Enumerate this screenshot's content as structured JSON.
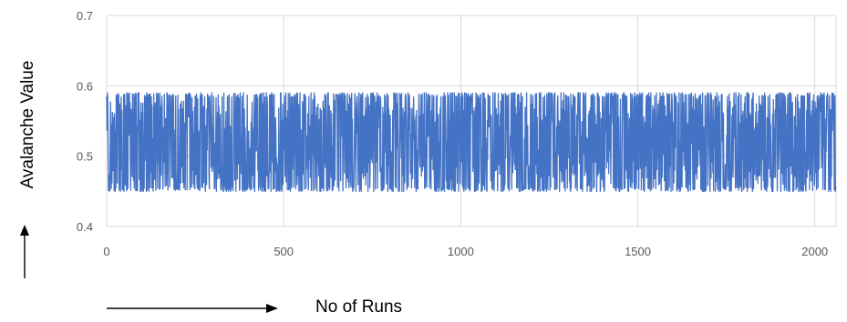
{
  "chart_data": {
    "type": "line",
    "title": "",
    "xlabel": "No of Runs",
    "ylabel": "Avalanche Value",
    "xlim": [
      0,
      2060
    ],
    "ylim": [
      0.4,
      0.7
    ],
    "x_ticks": [
      "0",
      "500",
      "1000",
      "1500",
      "2000"
    ],
    "y_ticks": [
      "0.4",
      "0.5",
      "0.6",
      "0.7"
    ],
    "grid": true,
    "legend": "none",
    "series_color": "#4472C4",
    "series": [
      {
        "y_min": 0.45,
        "y_max": 0.59,
        "y_typical": 0.52,
        "x_range": [
          0,
          2060
        ],
        "note_values": [
          0.52,
          0.56,
          0.47,
          0.58,
          0.5,
          0.46,
          0.55,
          0.49,
          0.57,
          0.45,
          0.53,
          0.59,
          0.48,
          0.51,
          0.56,
          0.47,
          0.54,
          0.58,
          0.46,
          0.5,
          0.55,
          0.49,
          0.57,
          0.52,
          0.45,
          0.53,
          0.59,
          0.48,
          0.51,
          0.56,
          0.47,
          0.54,
          0.5,
          0.58,
          0.46,
          0.55,
          0.49,
          0.57,
          0.52,
          0.45
        ]
      }
    ]
  }
}
